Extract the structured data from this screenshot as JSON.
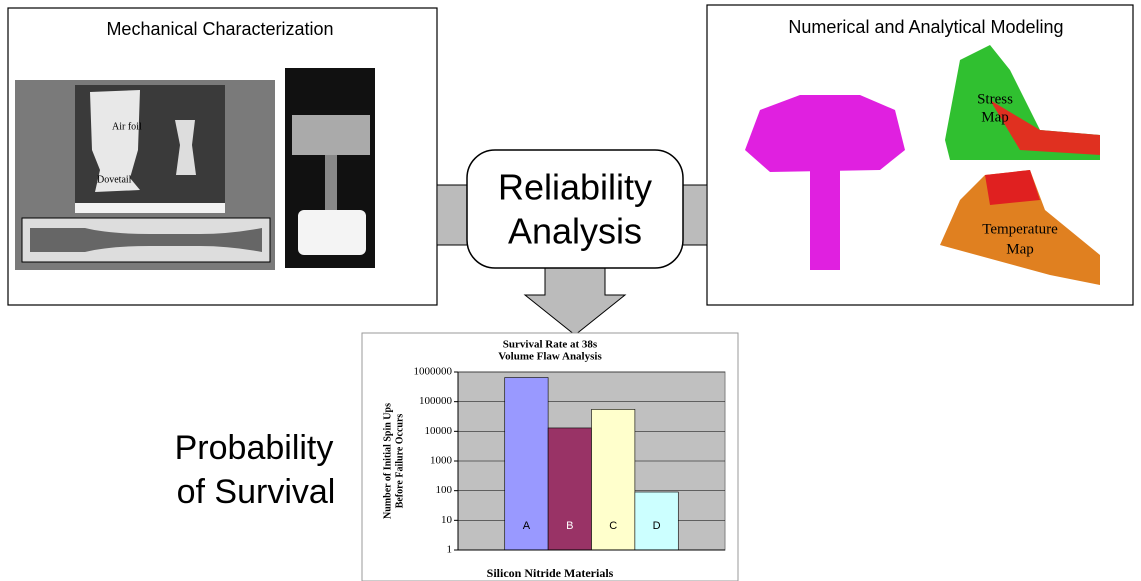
{
  "diagram": {
    "left_panel": {
      "title": "Mechanical Characterization",
      "labels": [
        "Air foil",
        "Dovetail"
      ]
    },
    "right_panel": {
      "title": "Numerical and Analytical Modeling",
      "stress_label": [
        "Stress",
        "Map"
      ],
      "temperature_label": [
        "Temperature",
        "Map"
      ]
    },
    "center": {
      "lines": [
        "Reliability",
        "Analysis"
      ]
    },
    "outcome": {
      "lines": [
        "Probability",
        "of Survival"
      ]
    }
  },
  "chart_data": {
    "type": "bar",
    "title": [
      "Survival Rate at 38s",
      "Volume Flaw Analysis"
    ],
    "y_label": [
      "Number of Initial Spin Ups",
      "Before Failure Occurs"
    ],
    "x_label": "Silicon Nitride Materials",
    "categories": [
      "A",
      "B",
      "C",
      "D"
    ],
    "values": [
      650000,
      13000,
      55000,
      90
    ],
    "colors": [
      "#9999ff",
      "#993366",
      "#ffffcc",
      "#ccffff"
    ],
    "log_scale": true,
    "ylim": [
      1,
      1000000
    ],
    "yticks": [
      1,
      10,
      100,
      1000,
      10000,
      100000,
      1000000
    ],
    "grid": true
  }
}
